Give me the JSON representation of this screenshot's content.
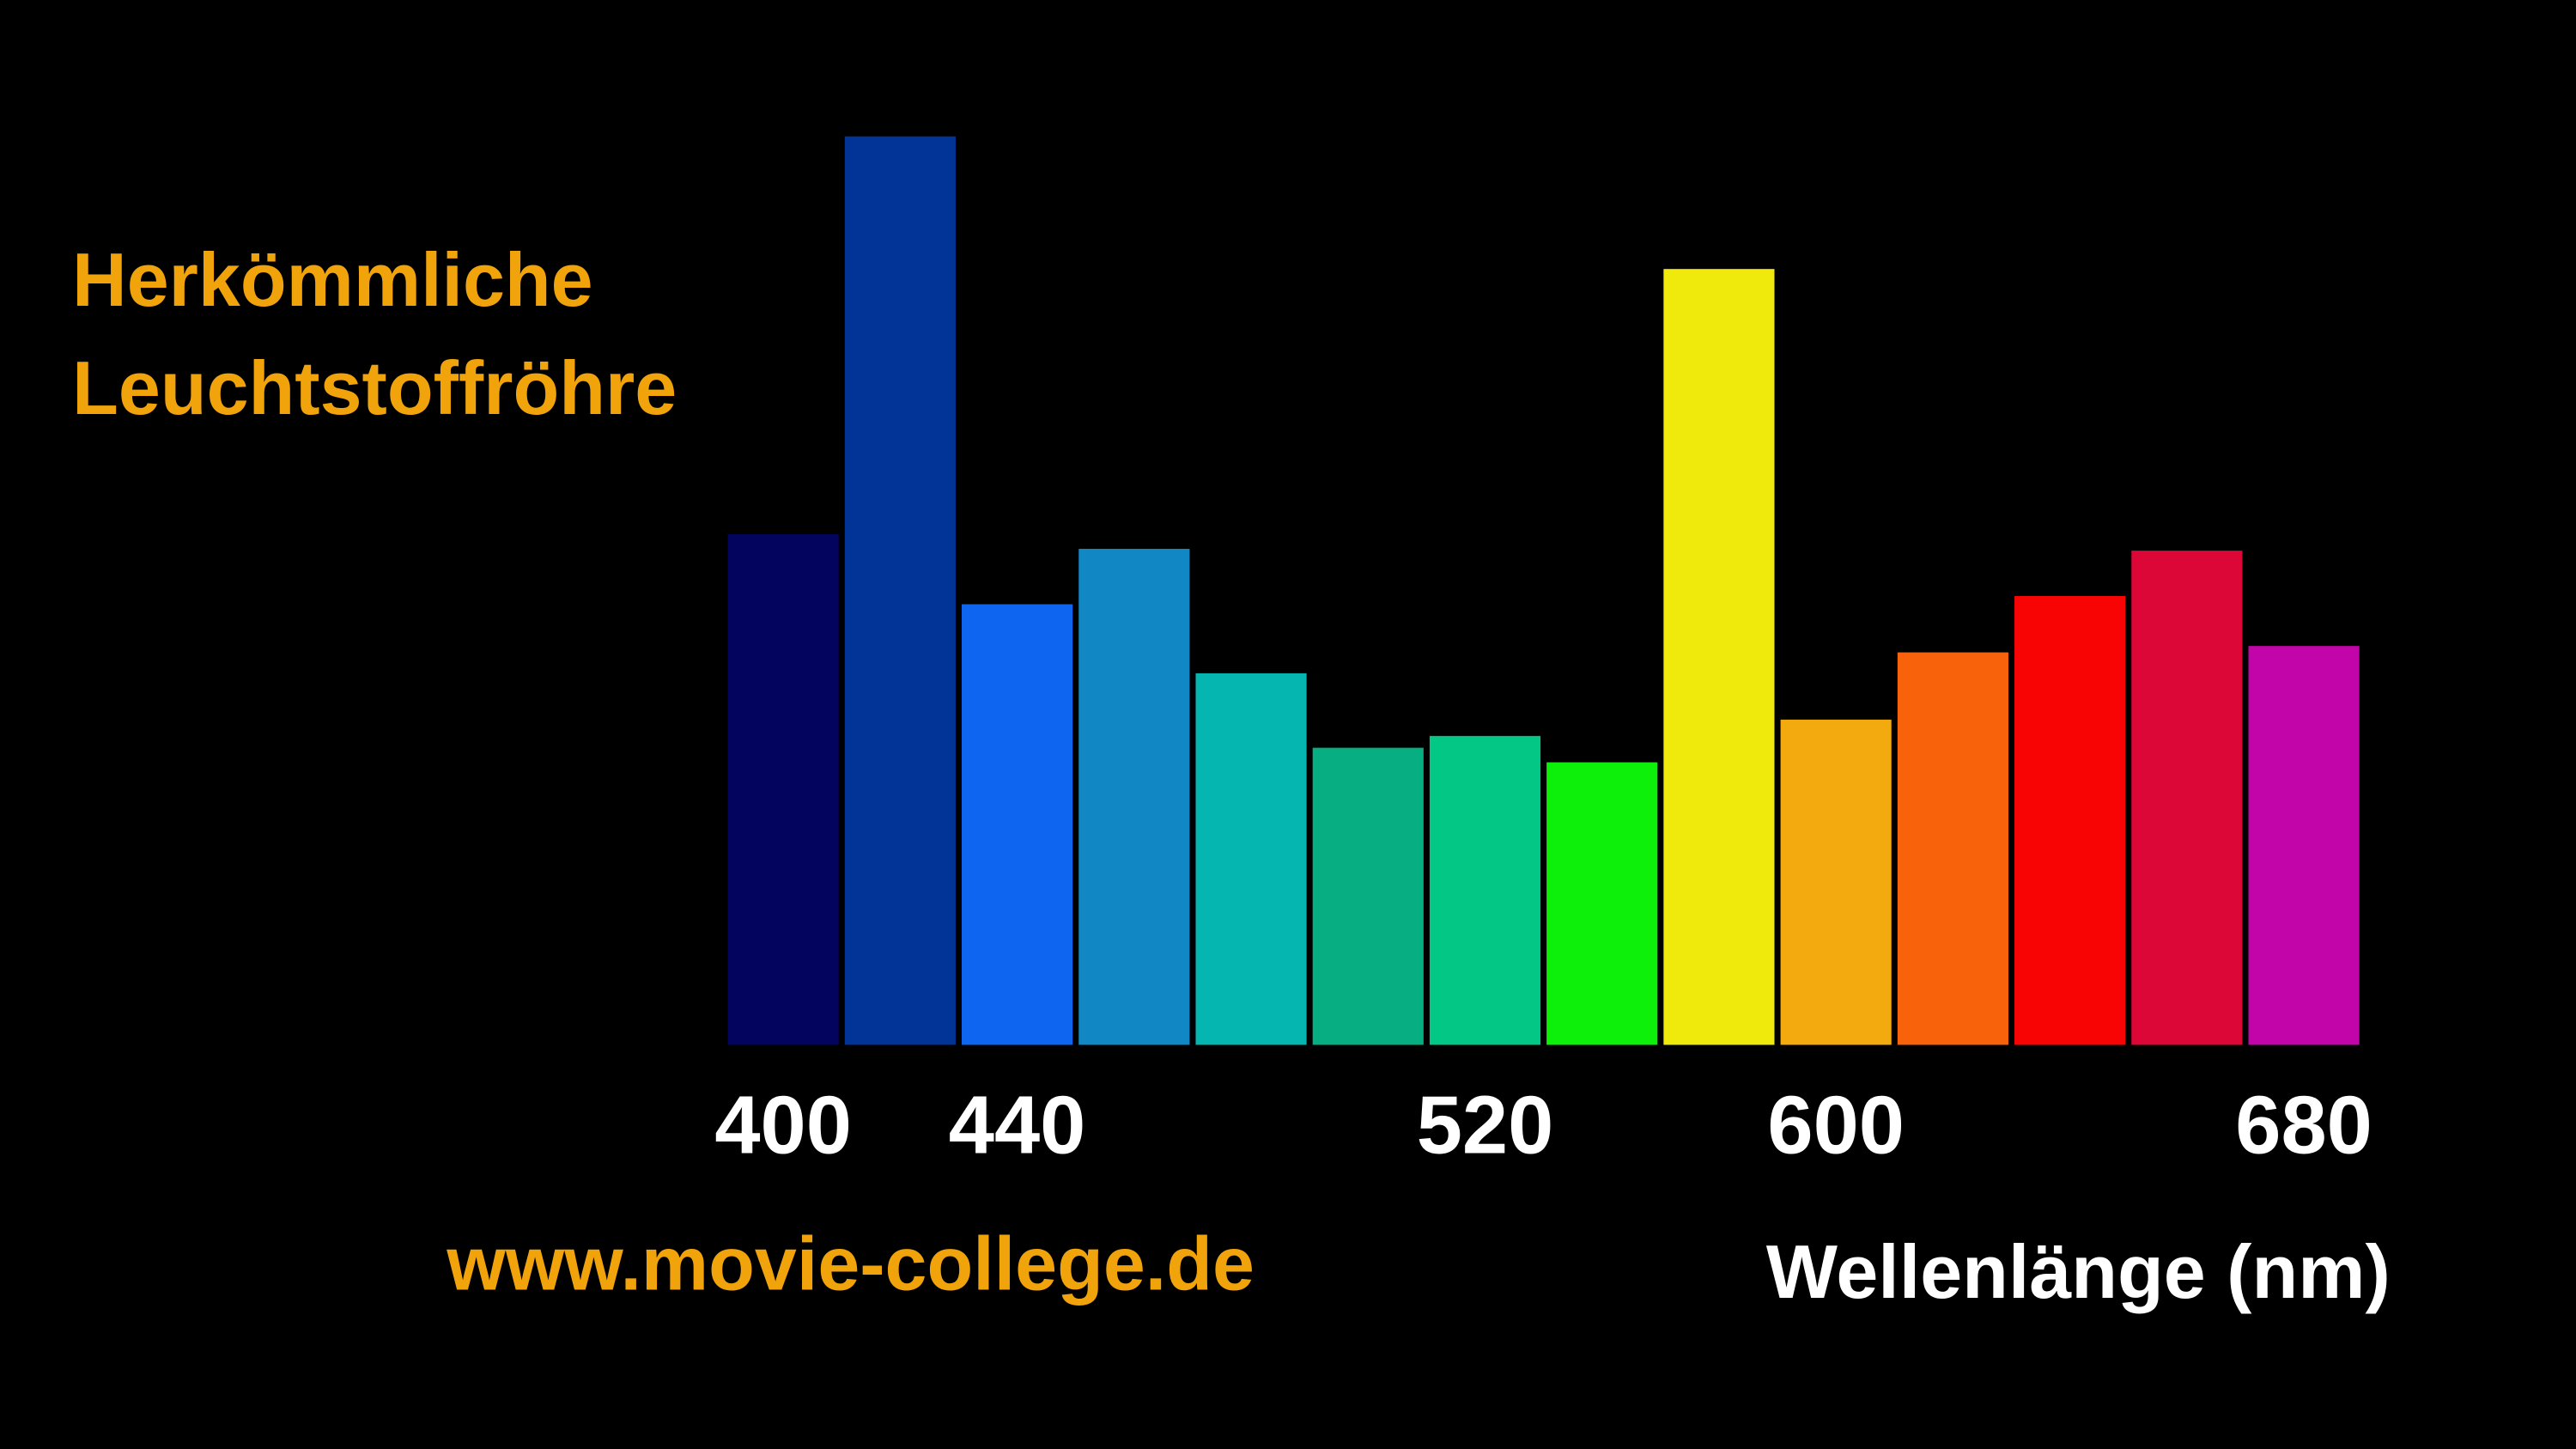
{
  "chart_data": {
    "type": "bar",
    "title": [
      "Herkömmliche",
      "Leuchtstoffröhre"
    ],
    "categories": [
      "400",
      null,
      "440",
      null,
      null,
      null,
      "520",
      null,
      null,
      "600",
      null,
      null,
      null,
      "680"
    ],
    "values": [
      56.2,
      100,
      48.5,
      54.6,
      40.9,
      32.7,
      34.0,
      31.1,
      85.4,
      35.8,
      43.2,
      49.4,
      54.4,
      43.9
    ],
    "colors": [
      "#03045e",
      "#023397",
      "#0e66f0",
      "#1187c4",
      "#04b5b0",
      "#07ae82",
      "#03c785",
      "#0df00a",
      "#f0ea0c",
      "#f2aa0e",
      "#f8620b",
      "#f80404",
      "#dc0637",
      "#c205a8"
    ],
    "ylim": [
      0,
      100
    ],
    "x_label": "Wellenlänge (nm)",
    "source": "www.movie-college.de"
  }
}
